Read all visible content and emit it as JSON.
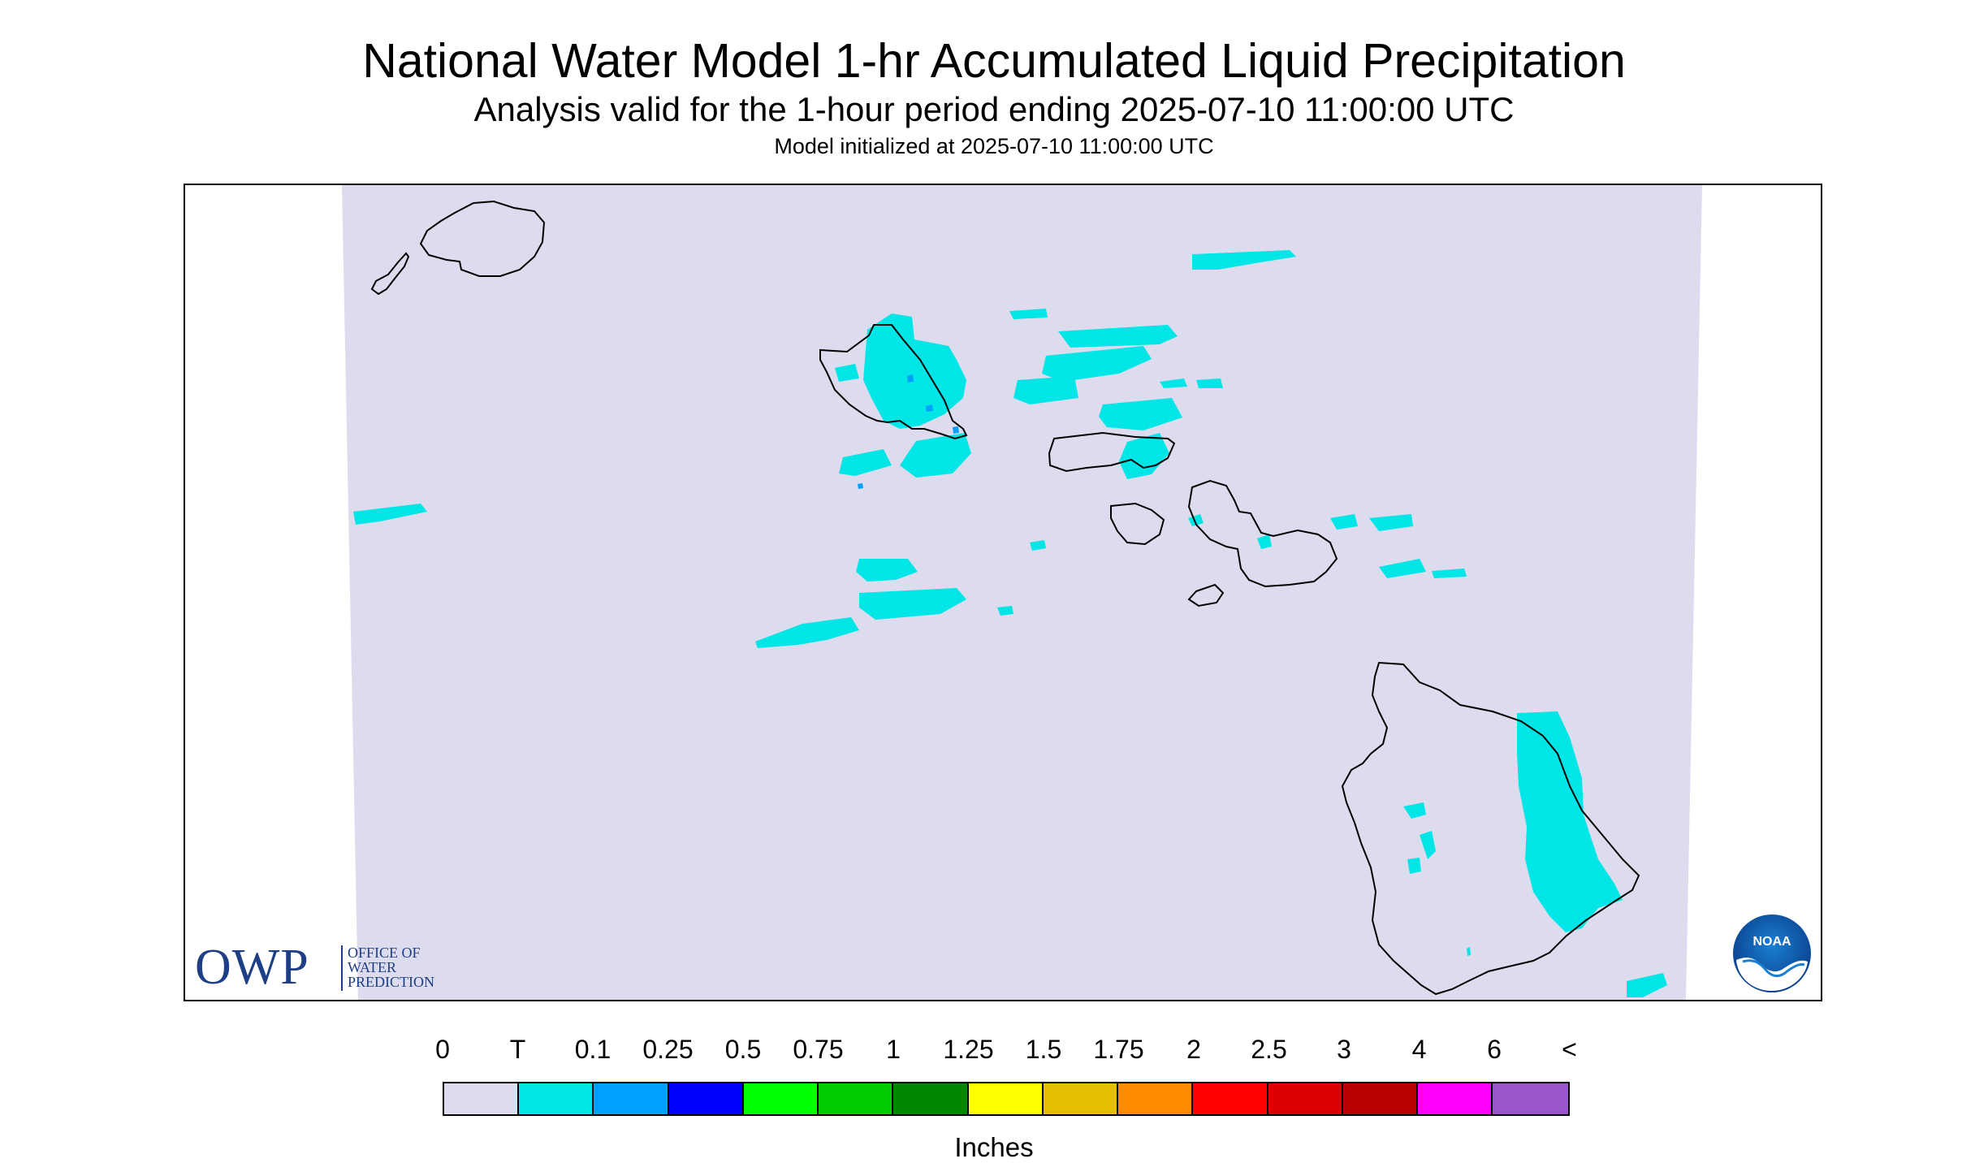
{
  "header": {
    "title": "National Water Model 1-hr Accumulated Liquid Precipitation",
    "subtitle": "Analysis valid for the 1-hour period ending 2025-07-10 11:00:00 UTC",
    "init_text": "Model initialized at 2025-07-10 11:00:00 UTC"
  },
  "map": {
    "region": "Hawaiian Islands",
    "background_color": "#dcdcee",
    "precip_trace_color": "#00e5e5",
    "precip_01_color": "#00a0ff",
    "coastline_color": "#000000"
  },
  "logos": {
    "owp": {
      "mark": "OWP",
      "text": "OFFICE OF\nWATER\nPREDICTION"
    },
    "noaa": {
      "mark": "NOAA"
    }
  },
  "legend": {
    "labels": [
      "0",
      "T",
      "0.1",
      "0.25",
      "0.5",
      "0.75",
      "1",
      "1.25",
      "1.5",
      "1.75",
      "2",
      "2.5",
      "3",
      "4",
      "6",
      "<"
    ],
    "colors": [
      "#dcdcee",
      "#00e5e5",
      "#00a0ff",
      "#0000ff",
      "#00ff00",
      "#00cc00",
      "#008800",
      "#ffff00",
      "#e5c000",
      "#ff8c00",
      "#ff0000",
      "#dd0000",
      "#bb0000",
      "#ff00ff",
      "#9955cc"
    ],
    "units": "Inches"
  }
}
